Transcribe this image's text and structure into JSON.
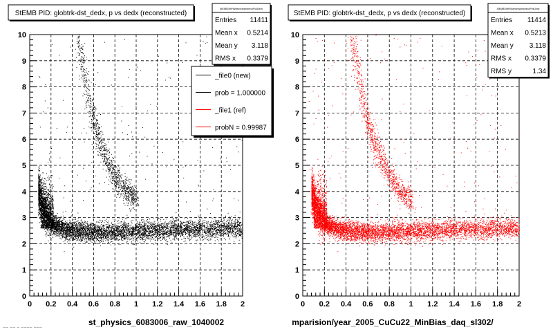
{
  "chart_data": [
    {
      "type": "scatter",
      "title": "StEMB PID: globtrk-dst_dedx,  p vs dedx (reconstructed)",
      "xlabel": "st_physics_6083006_raw_1040002",
      "xlim": [
        0,
        2
      ],
      "ylim": [
        0,
        10
      ],
      "xticks": [
        "0",
        "0.2",
        "0.4",
        "0.6",
        "0.8",
        "1",
        "1.2",
        "1.4",
        "1.6",
        "1.8",
        "2"
      ],
      "yticks": [
        "0",
        "1",
        "2",
        "3",
        "4",
        "5",
        "6",
        "7",
        "8",
        "9",
        "10"
      ],
      "grid": true,
      "point_color": "#000000",
      "bands": [
        {
          "x": [
            0.45,
            0.5,
            0.55,
            0.6,
            0.7,
            0.8,
            0.9,
            1.0
          ],
          "y": [
            9.9,
            8.8,
            7.6,
            6.6,
            5.4,
            4.6,
            4.0,
            3.7
          ]
        },
        {
          "x": [
            0.08,
            0.12,
            0.16,
            0.2,
            0.3,
            0.4,
            0.6,
            0.8,
            1.0,
            1.4,
            2.0
          ],
          "y": [
            4.0,
            3.5,
            3.1,
            2.8,
            2.6,
            2.5,
            2.45,
            2.45,
            2.5,
            2.55,
            2.6
          ]
        }
      ],
      "stats": {
        "header": "StEMBGetPid/dedxvsdedxrecoPvsDedx",
        "rows": [
          {
            "label": "Entries",
            "value": "11411"
          },
          {
            "label": "Mean x",
            "value": "0.5214"
          },
          {
            "label": "Mean y",
            "value": "3.118"
          },
          {
            "label": "RMS x",
            "value": "0.3379"
          }
        ]
      },
      "legend": [
        {
          "label": "_file0 (new)",
          "color": "#000000"
        },
        {
          "label": "prob = 1.000000",
          "color": "#000000"
        },
        {
          "label": "_file1 (ref)",
          "color": "#ff0000"
        },
        {
          "label": "probN = 0.99987",
          "color": "#ff0000"
        }
      ]
    },
    {
      "type": "scatter",
      "title": "StEMB PID: globtrk-dst_dedx,  p vs dedx (reconstructed)",
      "xlabel": "mparision/year_2005_CuCu22_MinBias_daq_sl302/",
      "xlim": [
        0,
        2
      ],
      "ylim": [
        0,
        10
      ],
      "xticks": [
        "0",
        "0.2",
        "0.4",
        "0.6",
        "0.8",
        "1",
        "1.2",
        "1.4",
        "1.6",
        "1.8",
        "2"
      ],
      "yticks": [
        "0",
        "1",
        "2",
        "3",
        "4",
        "5",
        "6",
        "7",
        "8",
        "9",
        "10"
      ],
      "grid": true,
      "point_color": "#ff0000",
      "bands": [
        {
          "x": [
            0.45,
            0.5,
            0.55,
            0.6,
            0.7,
            0.8,
            0.9,
            1.0
          ],
          "y": [
            9.9,
            8.8,
            7.6,
            6.6,
            5.4,
            4.6,
            4.0,
            3.7
          ]
        },
        {
          "x": [
            0.08,
            0.12,
            0.16,
            0.2,
            0.3,
            0.4,
            0.6,
            0.8,
            1.0,
            1.4,
            2.0
          ],
          "y": [
            4.0,
            3.5,
            3.1,
            2.8,
            2.6,
            2.5,
            2.45,
            2.45,
            2.5,
            2.55,
            2.6
          ]
        }
      ],
      "stats": {
        "header": "StEMBGetPid/dedxvsdedxrecoPvsDedx",
        "rows": [
          {
            "label": "Entries",
            "value": "11414"
          },
          {
            "label": "Mean x",
            "value": "0.5213"
          },
          {
            "label": "Mean y",
            "value": "3.118"
          },
          {
            "label": "RMS x",
            "value": "0.3379"
          },
          {
            "label": "RMS y",
            "value": "1.34"
          }
        ]
      }
    }
  ],
  "footer": {
    "left_fragment": "~~ ~~ ~  ~~~~ ~~~"
  }
}
